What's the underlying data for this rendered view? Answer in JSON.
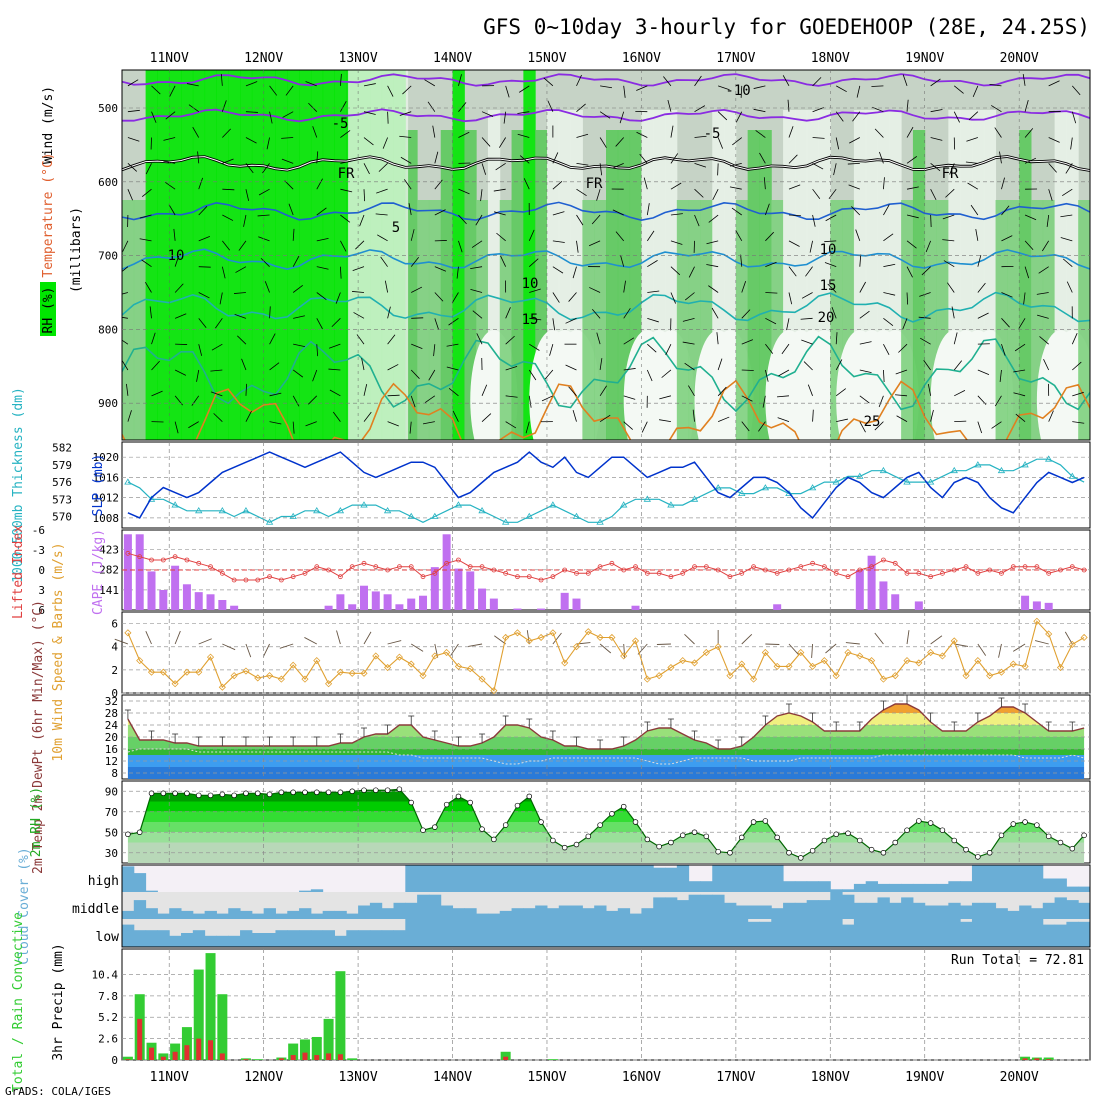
{
  "title": "GFS 0~10day 3-hourly for GOEDEHOOP (28E, 24.25S)",
  "footer": "GrADS: COLA/IGES",
  "dates": [
    "11NOV",
    "12NOV",
    "13NOV",
    "14NOV",
    "15NOV",
    "16NOV",
    "17NOV",
    "18NOV",
    "19NOV",
    "20NOV"
  ],
  "colors": {
    "rh_light": "#e8f2e8",
    "rh_grey1": "#c6d3c6",
    "rh_grey2": "#a9bba9",
    "rh_green1": "#7ed07e",
    "rh_green2": "#5cc95c",
    "rh_green3": "#00e600",
    "thickness": "#26b3c2",
    "slp": "#0033cc",
    "lifted": "#e04040",
    "cape": "#c070f0",
    "wind10m": "#e0a030",
    "temp": "#8b3a3a",
    "dewpt": "#a04040",
    "rh2m": "#006600",
    "cloud": "#6aaed6",
    "precip_total": "#33cc33",
    "precip_conv": "#e03030"
  },
  "panels": {
    "upper": {
      "ylabel_rh": "RH (%)",
      "ylabel_temp": "Temperature (°C)",
      "ylabel_wind": "Wind (m/s)",
      "ylabel_mb": "(millibars)",
      "yticks": [
        "500",
        "600",
        "700",
        "800",
        "900"
      ],
      "contour_labels": [
        {
          "text": "-10",
          "color": "#8a2be2"
        },
        {
          "text": "-5",
          "color": "#8a2be2"
        },
        {
          "text": "-5",
          "color": "#8a2be2"
        },
        {
          "text": "FR",
          "color": "#000000"
        },
        {
          "text": "FR",
          "color": "#000000"
        },
        {
          "text": "FR",
          "color": "#000000"
        },
        {
          "text": "5",
          "color": "#1f5fd0"
        },
        {
          "text": "10",
          "color": "#1f8fd0"
        },
        {
          "text": "10",
          "color": "#1f8fd0"
        },
        {
          "text": "10",
          "color": "#1f8fd0"
        },
        {
          "text": "15",
          "color": "#20b0b0"
        },
        {
          "text": "15",
          "color": "#20b0b0"
        },
        {
          "text": "20",
          "color": "#20b090"
        },
        {
          "text": "25",
          "color": "#e08020"
        }
      ]
    },
    "slp": {
      "ylabel_left": "1000-500mb Thickness (dm)",
      "ylabel_right": "SLP (mb)",
      "left_ticks": [
        "582",
        "579",
        "576",
        "573",
        "570"
      ],
      "right_ticks": [
        "1020",
        "1016",
        "1012",
        "1008"
      ]
    },
    "cape": {
      "ylabel_left": "Lifted Index",
      "ylabel_right": "CAPE (J/kg)",
      "left_ticks": [
        "-6",
        "-3",
        "0",
        "3",
        "6"
      ],
      "right_ticks": [
        "423",
        "282",
        "141"
      ]
    },
    "wind": {
      "ylabel": "10m Wind Speed & Barbs (m/s)",
      "yticks": [
        "6",
        "4",
        "2",
        "0"
      ]
    },
    "temp": {
      "ylabel": "2m Temp 2m DewPt (6hr Min/Max) (°C)",
      "yticks": [
        "32",
        "28",
        "24",
        "20",
        "16",
        "12",
        "8"
      ]
    },
    "rh2m": {
      "ylabel": "2m RH (%)",
      "yticks": [
        "90",
        "70",
        "50",
        "30"
      ]
    },
    "cloud": {
      "ylabel": "Cloud Cover (%)",
      "levels": [
        "high",
        "middle",
        "low"
      ]
    },
    "precip": {
      "ylabel_left": "Total / Rain Convective",
      "ylabel_right": "3hr Precip (mm)",
      "yticks": [
        "10.4",
        "7.8",
        "5.2",
        "2.6",
        "0"
      ],
      "run_total": "Run Total = 72.81"
    }
  },
  "chart_data": {
    "type": "meteogram",
    "x_start": "10NOV 12Z",
    "x_step_hours": 3,
    "series": [
      {
        "name": "SLP",
        "values": [
          1009,
          1008,
          1012,
          1014,
          1013,
          1012,
          1013,
          1015,
          1017,
          1018,
          1019,
          1020,
          1021,
          1020,
          1019,
          1018,
          1019,
          1020,
          1021,
          1019,
          1017,
          1016,
          1017,
          1018,
          1019,
          1019,
          1018,
          1015,
          1012,
          1013,
          1015,
          1017,
          1018,
          1019,
          1021,
          1019,
          1018,
          1020,
          1017,
          1016,
          1018,
          1020,
          1020,
          1018,
          1016,
          1017,
          1018,
          1018,
          1019,
          1016,
          1013,
          1012,
          1014,
          1016,
          1016,
          1015,
          1013,
          1010,
          1008,
          1011,
          1014,
          1016,
          1015,
          1013,
          1012,
          1014,
          1016,
          1017,
          1014,
          1012,
          1015,
          1016,
          1015,
          1012,
          1010,
          1009,
          1012,
          1015,
          1017,
          1016,
          1015,
          1016
        ]
      },
      {
        "name": "Thickness",
        "values": [
          576,
          575,
          573,
          573,
          572,
          571,
          571,
          571,
          571,
          570,
          571,
          570,
          569,
          570,
          570,
          571,
          571,
          570,
          571,
          572,
          572,
          572,
          571,
          571,
          570,
          569,
          570,
          571,
          572,
          572,
          571,
          570,
          569,
          569,
          570,
          571,
          572,
          571,
          570,
          569,
          569,
          570,
          572,
          573,
          573,
          573,
          572,
          572,
          573,
          574,
          575,
          575,
          574,
          574,
          575,
          575,
          574,
          574,
          575,
          576,
          576,
          577,
          577,
          578,
          578,
          577,
          576,
          576,
          576,
          577,
          578,
          578,
          579,
          579,
          578,
          578,
          579,
          580,
          580,
          579,
          577,
          576
        ]
      },
      {
        "name": "CAPE",
        "values": [
          530,
          530,
          270,
          140,
          310,
          180,
          125,
          110,
          70,
          30,
          0,
          0,
          0,
          0,
          0,
          0,
          0,
          30,
          110,
          40,
          170,
          130,
          110,
          40,
          80,
          100,
          300,
          530,
          290,
          270,
          150,
          80,
          0,
          10,
          0,
          10,
          0,
          120,
          80,
          0,
          0,
          0,
          0,
          30,
          0,
          0,
          0,
          0,
          0,
          0,
          0,
          0,
          0,
          0,
          0,
          40,
          0,
          0,
          0,
          0,
          0,
          0,
          280,
          380,
          200,
          110,
          0,
          60,
          0,
          0,
          0,
          0,
          0,
          0,
          0,
          0,
          100,
          60,
          50,
          0,
          0,
          0
        ]
      },
      {
        "name": "Lifted Index",
        "values": [
          -2.5,
          -2,
          -1.5,
          -1.5,
          -2,
          -1.5,
          -1,
          -0.5,
          0.5,
          1.5,
          1.5,
          1.5,
          1,
          1.5,
          1,
          0.5,
          -0.5,
          0,
          1,
          -0.5,
          -1,
          -0.5,
          0,
          -0.5,
          -0.5,
          1,
          0.5,
          -1,
          -1.5,
          -0.5,
          -0.5,
          0,
          0.5,
          1,
          1,
          1.5,
          1,
          0,
          0.5,
          0.5,
          -0.5,
          -1,
          0,
          -0.5,
          0.5,
          0.5,
          1,
          0.5,
          -0.5,
          -0.5,
          0,
          1,
          0.5,
          -0.5,
          0,
          0.5,
          0,
          -0.5,
          -1,
          -0.5,
          0.5,
          1,
          0,
          -0.5,
          -1.5,
          -1,
          0.5,
          0.5,
          1,
          0.5,
          0,
          -0.5,
          0.5,
          0,
          0.5,
          -0.5,
          -0.5,
          -0.5,
          0.5,
          0,
          -0.5,
          0
        ]
      },
      {
        "name": "10m Wind Speed",
        "values": [
          5.2,
          2.8,
          1.8,
          1.8,
          0.8,
          1.8,
          1.8,
          3.1,
          0.5,
          1.5,
          1.9,
          1.3,
          1.5,
          1.2,
          2.4,
          1.2,
          2.8,
          0.8,
          1.8,
          1.7,
          1.7,
          3.2,
          2.2,
          3.1,
          2.5,
          1.5,
          3.2,
          3.5,
          2.3,
          2.1,
          1.2,
          0.2,
          4.8,
          5.2,
          4.5,
          4.8,
          5.2,
          2.6,
          4,
          5.3,
          4.8,
          4.8,
          3.2,
          4.5,
          1.2,
          1.5,
          2.2,
          2.8,
          2.6,
          3.5,
          4,
          1.5,
          2.5,
          1.2,
          3.5,
          2.3,
          2.3,
          3.5,
          2.3,
          2.8,
          1.5,
          3.5,
          3.2,
          2.8,
          1.2,
          1.5,
          2.8,
          2.6,
          3.5,
          3.2,
          4.5,
          1.5,
          2.8,
          1.5,
          1.8,
          2.5,
          2.3,
          6.2,
          5.1,
          2.2,
          4.2,
          4.8
        ]
      },
      {
        "name": "2m Temp",
        "values": [
          26,
          19,
          19,
          19,
          18,
          18,
          17,
          17,
          17,
          17,
          17,
          17,
          17,
          17,
          17,
          17,
          17,
          17,
          18,
          18,
          20,
          21,
          21,
          24,
          24,
          20,
          19,
          18,
          17,
          17,
          18,
          20,
          24,
          24,
          23,
          20,
          19,
          17,
          17,
          16,
          16,
          16,
          17,
          19,
          22,
          23,
          23,
          21,
          19,
          18,
          16,
          16,
          17,
          20,
          24,
          27,
          28,
          27,
          25,
          22,
          22,
          22,
          22,
          26,
          29,
          31,
          31,
          29,
          25,
          22,
          22,
          22,
          25,
          27,
          30,
          30,
          28,
          25,
          22,
          22,
          22,
          23
        ]
      },
      {
        "name": "2m DewPt",
        "values": [
          15,
          16,
          16,
          16,
          16,
          16,
          15,
          15,
          15,
          15,
          15,
          15,
          15,
          15,
          15,
          15,
          15,
          15,
          15,
          15,
          15,
          15,
          15,
          14,
          14,
          13,
          13,
          13,
          13,
          13,
          13,
          12,
          11,
          11,
          12,
          12,
          13,
          13,
          13,
          13,
          13,
          13,
          13,
          13,
          12,
          11,
          11,
          12,
          13,
          13,
          13,
          13,
          13,
          12,
          12,
          12,
          12,
          13,
          13,
          13,
          13,
          13,
          13,
          13,
          14,
          14,
          14,
          14,
          14,
          14,
          14,
          14,
          14,
          14,
          14,
          14,
          13,
          13,
          13,
          13,
          14,
          13
        ]
      },
      {
        "name": "2m RH",
        "values": [
          48,
          50,
          88,
          88,
          88,
          88,
          86,
          86,
          87,
          86,
          88,
          88,
          87,
          89,
          89,
          89,
          89,
          89,
          89,
          90,
          91,
          91,
          91,
          92,
          79,
          52,
          55,
          77,
          85,
          79,
          53,
          43,
          57,
          76,
          85,
          60,
          42,
          35,
          38,
          46,
          57,
          68,
          75,
          60,
          43,
          36,
          40,
          47,
          50,
          46,
          31,
          30,
          45,
          60,
          61,
          45,
          30,
          25,
          32,
          42,
          48,
          49,
          42,
          33,
          30,
          40,
          52,
          61,
          59,
          52,
          42,
          33,
          26,
          30,
          47,
          58,
          60,
          57,
          46,
          40,
          34,
          47
        ]
      },
      {
        "name": "Precip Total",
        "values": [
          0.4,
          8,
          2.1,
          0.8,
          2,
          4,
          11,
          13,
          8,
          0,
          0.2,
          0.1,
          0,
          0.3,
          2,
          2.5,
          2.8,
          5,
          10.8,
          0.2,
          0,
          0,
          0,
          0,
          0,
          0,
          0,
          0,
          0,
          0,
          0,
          0,
          1,
          0,
          0,
          0,
          0.1,
          0,
          0,
          0,
          0,
          0,
          0,
          0,
          0,
          0,
          0,
          0,
          0,
          0,
          0,
          0,
          0,
          0,
          0,
          0,
          0,
          0,
          0,
          0,
          0,
          0,
          0,
          0,
          0,
          0,
          0,
          0,
          0,
          0,
          0,
          0,
          0,
          0,
          0,
          0,
          0.4,
          0.3,
          0.3,
          0,
          0,
          0
        ]
      },
      {
        "name": "Precip Convective",
        "values": [
          0.1,
          5,
          1.5,
          0.4,
          1,
          1.8,
          2.6,
          2.4,
          0.8,
          0,
          0.1,
          0,
          0,
          0.2,
          0.6,
          0.9,
          0.6,
          0.8,
          0.7,
          0,
          0,
          0,
          0,
          0,
          0,
          0,
          0,
          0,
          0,
          0,
          0,
          0,
          0.4,
          0,
          0,
          0,
          0,
          0,
          0,
          0,
          0,
          0,
          0,
          0,
          0,
          0,
          0,
          0,
          0,
          0,
          0,
          0,
          0,
          0,
          0,
          0,
          0,
          0,
          0,
          0,
          0,
          0,
          0,
          0,
          0,
          0,
          0,
          0,
          0,
          0,
          0,
          0,
          0,
          0,
          0,
          0,
          0.2,
          0.2,
          0.1,
          0,
          0,
          0
        ]
      },
      {
        "name": "High Cloud",
        "values": [
          0.95,
          0.7,
          0.05,
          0,
          0,
          0,
          0,
          0,
          0,
          0,
          0,
          0,
          0,
          0,
          0,
          0.05,
          0.1,
          0,
          0,
          0,
          0,
          0,
          0,
          0,
          1,
          1,
          1,
          1,
          1,
          1,
          1,
          1,
          1,
          1,
          1,
          1,
          1,
          1,
          1,
          1,
          1,
          1,
          1,
          1,
          1,
          0.9,
          0.9,
          1,
          0.4,
          0.4,
          1,
          1,
          1,
          1,
          1,
          1,
          0.4,
          0.4,
          0.4,
          0.4,
          0.1,
          0.1,
          0.3,
          0.4,
          0.3,
          0.3,
          0.3,
          0.3,
          0.3,
          0.3,
          0.4,
          0.4,
          1,
          1,
          1,
          1,
          1,
          1,
          0.5,
          0.5,
          0.2,
          0.2
        ]
      },
      {
        "name": "Middle Cloud",
        "values": [
          0.3,
          0.7,
          0.4,
          0.2,
          0.4,
          0.3,
          0.2,
          0.3,
          0.2,
          0.4,
          0.3,
          0.2,
          0.4,
          0.2,
          0.3,
          0.4,
          0.2,
          0.3,
          0.3,
          0.2,
          0.5,
          0.6,
          0.4,
          0.6,
          0.6,
          0.9,
          0.9,
          0.5,
          0.4,
          0.4,
          0.2,
          0.2,
          0.3,
          0.4,
          0.4,
          0.5,
          0.4,
          0.5,
          0.5,
          0.4,
          0.5,
          0.3,
          0.4,
          0.2,
          0.4,
          0.8,
          0.8,
          0.7,
          0.9,
          0.9,
          0.9,
          0.6,
          0.5,
          0.5,
          0.5,
          0.4,
          0.6,
          0.6,
          0.7,
          0.7,
          1,
          0.9,
          0.6,
          0.6,
          0.8,
          0.6,
          0.8,
          0.6,
          0.5,
          0.5,
          0.6,
          0.5,
          0.6,
          0.6,
          0.4,
          0.3,
          0.5,
          0.4,
          0.6,
          0.8,
          0.7,
          0.6
        ]
      },
      {
        "name": "Low Cloud",
        "values": [
          0.8,
          0.6,
          0.6,
          0.6,
          0.4,
          0.5,
          0.6,
          0.4,
          0.4,
          0.4,
          0.6,
          0.5,
          0.5,
          0.6,
          0.6,
          0.6,
          0.6,
          0.6,
          0.4,
          0.6,
          0.6,
          0.6,
          0.6,
          0.6,
          1,
          1,
          1,
          1,
          1,
          1,
          1,
          1,
          1,
          1,
          1,
          1,
          1,
          1,
          1,
          1,
          1,
          1,
          1,
          1,
          1,
          1,
          1,
          1,
          1,
          1,
          1,
          1,
          1,
          0.9,
          0.9,
          1,
          1,
          1,
          1,
          1,
          1,
          0.8,
          1,
          1,
          1,
          1,
          1,
          1,
          1,
          1,
          1,
          0.9,
          1,
          1,
          1,
          1,
          1,
          1,
          0.8,
          0.8,
          0.9,
          0.9
        ]
      }
    ]
  }
}
